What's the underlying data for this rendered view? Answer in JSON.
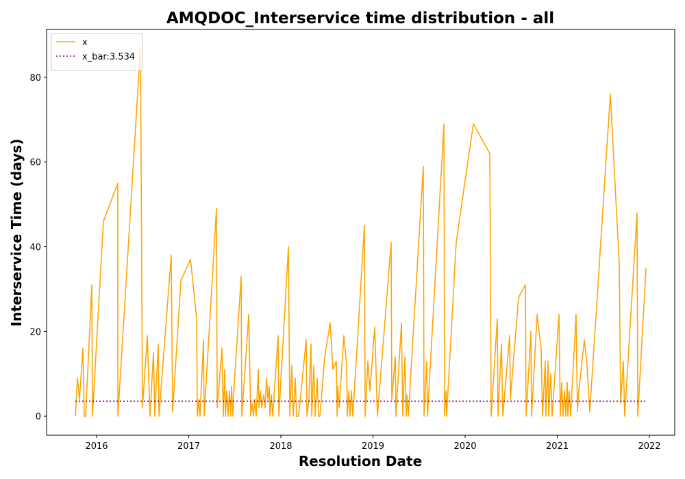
{
  "chart_data": {
    "type": "line",
    "title": "AMQDOC_Interservice time distribution - all",
    "xlabel": "Resolution Date",
    "ylabel": "Interservice Time (days)",
    "xlim": [
      2015.457,
      2022.275
    ],
    "ylim": [
      -4.5,
      91.3
    ],
    "xticks": [
      2016,
      2017,
      2018,
      2019,
      2020,
      2021,
      2022
    ],
    "yticks": [
      0,
      20,
      40,
      60,
      80
    ],
    "legend": "upper left",
    "grid": false,
    "series": [
      {
        "name": "x",
        "color": "#ffa500",
        "linestyle": "solid",
        "x": [
          2015.77,
          2015.792,
          2015.814,
          2015.851,
          2015.866,
          2015.881,
          2015.948,
          2015.955,
          2016.074,
          2016.23,
          2016.231,
          2016.476,
          2016.498,
          2016.55,
          2016.58,
          2016.617,
          2016.632,
          2016.669,
          2016.677,
          2016.81,
          2016.825,
          2016.915,
          2017.019,
          2017.086,
          2017.093,
          2017.108,
          2017.123,
          2017.16,
          2017.167,
          2017.301,
          2017.309,
          2017.361,
          2017.375,
          2017.39,
          2017.398,
          2017.413,
          2017.428,
          2017.442,
          2017.457,
          2017.465,
          2017.48,
          2017.487,
          2017.569,
          2017.576,
          2017.651,
          2017.673,
          2017.688,
          2017.703,
          2017.717,
          2017.732,
          2017.755,
          2017.762,
          2017.777,
          2017.792,
          2017.814,
          2017.829,
          2017.844,
          2017.859,
          2017.874,
          2017.881,
          2017.896,
          2017.911,
          2017.97,
          2017.978,
          2018.082,
          2018.097,
          2018.119,
          2018.134,
          2018.156,
          2018.171,
          2018.193,
          2018.275,
          2018.283,
          2018.305,
          2018.327,
          2018.335,
          2018.357,
          2018.372,
          2018.394,
          2018.409,
          2018.424,
          2018.476,
          2018.535,
          2018.565,
          2018.602,
          2018.61,
          2018.617,
          2018.632,
          2018.684,
          2018.714,
          2018.721,
          2018.736,
          2018.751,
          2018.766,
          2018.781,
          2018.907,
          2018.915,
          2018.944,
          2018.967,
          2019.019,
          2019.048,
          2019.197,
          2019.204,
          2019.242,
          2019.249,
          2019.309,
          2019.323,
          2019.346,
          2019.361,
          2019.368,
          2019.383,
          2019.546,
          2019.554,
          2019.584,
          2019.591,
          2019.77,
          2019.777,
          2019.792,
          2019.799,
          2019.903,
          2020.089,
          2020.268,
          2020.283,
          2020.349,
          2020.357,
          2020.394,
          2020.409,
          2020.483,
          2020.491,
          2020.58,
          2020.654,
          2020.662,
          2020.714,
          2020.721,
          2020.781,
          2020.825,
          2020.84,
          2020.87,
          2020.877,
          2020.9,
          2020.907,
          2020.929,
          2020.944,
          2021.019,
          2021.033,
          2021.048,
          2021.063,
          2021.078,
          2021.093,
          2021.108,
          2021.115,
          2021.13,
          2021.145,
          2021.204,
          2021.219,
          2021.234,
          2021.294,
          2021.323,
          2021.353,
          2021.576,
          2021.673,
          2021.688,
          2021.717,
          2021.732,
          2021.866,
          2021.874,
          2021.963
        ],
        "values": [
          0,
          9,
          4,
          16,
          0,
          0,
          31,
          0,
          46,
          55,
          0,
          87,
          2,
          19,
          0,
          15,
          0,
          17,
          0,
          38,
          1,
          32,
          37,
          23,
          0,
          4,
          0,
          18,
          0,
          49,
          2,
          16,
          0,
          11,
          0,
          6,
          0,
          6,
          0,
          7,
          0,
          5,
          33,
          0,
          24,
          0,
          3,
          0,
          4,
          0,
          11,
          2,
          6,
          2,
          5,
          2,
          9,
          4,
          7,
          0,
          5,
          0,
          19,
          0,
          40,
          0,
          12,
          0,
          9,
          0,
          0,
          18,
          0,
          4,
          17,
          0,
          12,
          0,
          9,
          0,
          0,
          14,
          22,
          11,
          13,
          0,
          7,
          2,
          19,
          12,
          0,
          6,
          0,
          6,
          0,
          45,
          0,
          13,
          6,
          21,
          0,
          41,
          4,
          14,
          0,
          22,
          0,
          14,
          0,
          5,
          0,
          59,
          0,
          13,
          0,
          69,
          0,
          6,
          0,
          41,
          69,
          62,
          0,
          23,
          0,
          17,
          0,
          19,
          4,
          28,
          31,
          0,
          20,
          0,
          24,
          16,
          0,
          13,
          0,
          13,
          0,
          10,
          0,
          24,
          0,
          8,
          0,
          6,
          0,
          8,
          0,
          6,
          0,
          24,
          1,
          6,
          18,
          12,
          1,
          76,
          36,
          3,
          13,
          0,
          48,
          0,
          35
        ]
      },
      {
        "name": "x_bar:3.534",
        "color": "#800080",
        "linestyle": "dotted",
        "x": [
          2015.77,
          2021.963
        ],
        "values": [
          3.534,
          3.534
        ]
      }
    ]
  }
}
